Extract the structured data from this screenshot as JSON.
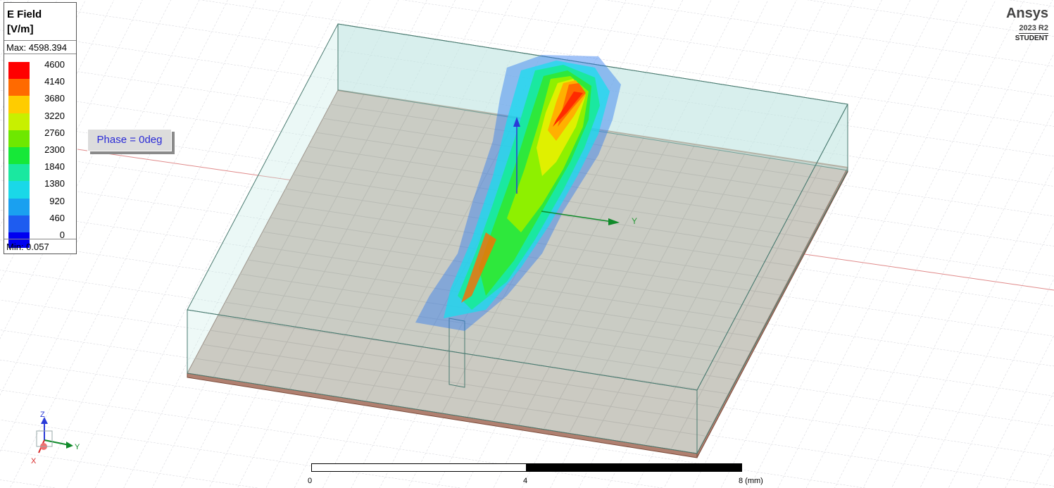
{
  "legend": {
    "title_line1": "E Field",
    "title_line2": "[V/m]",
    "max_label": "Max: 4598.394",
    "min_label": "Min:    0.057",
    "ticks": [
      "4600",
      "4140",
      "3680",
      "3220",
      "2760",
      "2300",
      "1840",
      "1380",
      "920",
      "460",
      "0"
    ],
    "colors": [
      "#ff0000",
      "#ff6a00",
      "#ffcc00",
      "#c8f000",
      "#6ee800",
      "#16e838",
      "#1ae8a0",
      "#1ad8e8",
      "#1aa0f0",
      "#1e5cf0",
      "#0000f0"
    ]
  },
  "phase_label": "Phase = 0deg",
  "brand": {
    "name": "Ansys",
    "version": "2023 R2",
    "edition": "STUDENT"
  },
  "scale": {
    "labels": [
      "0",
      "4",
      "8 (mm)"
    ]
  },
  "axes": {
    "x": "X",
    "y": "Y",
    "z": "Z"
  }
}
